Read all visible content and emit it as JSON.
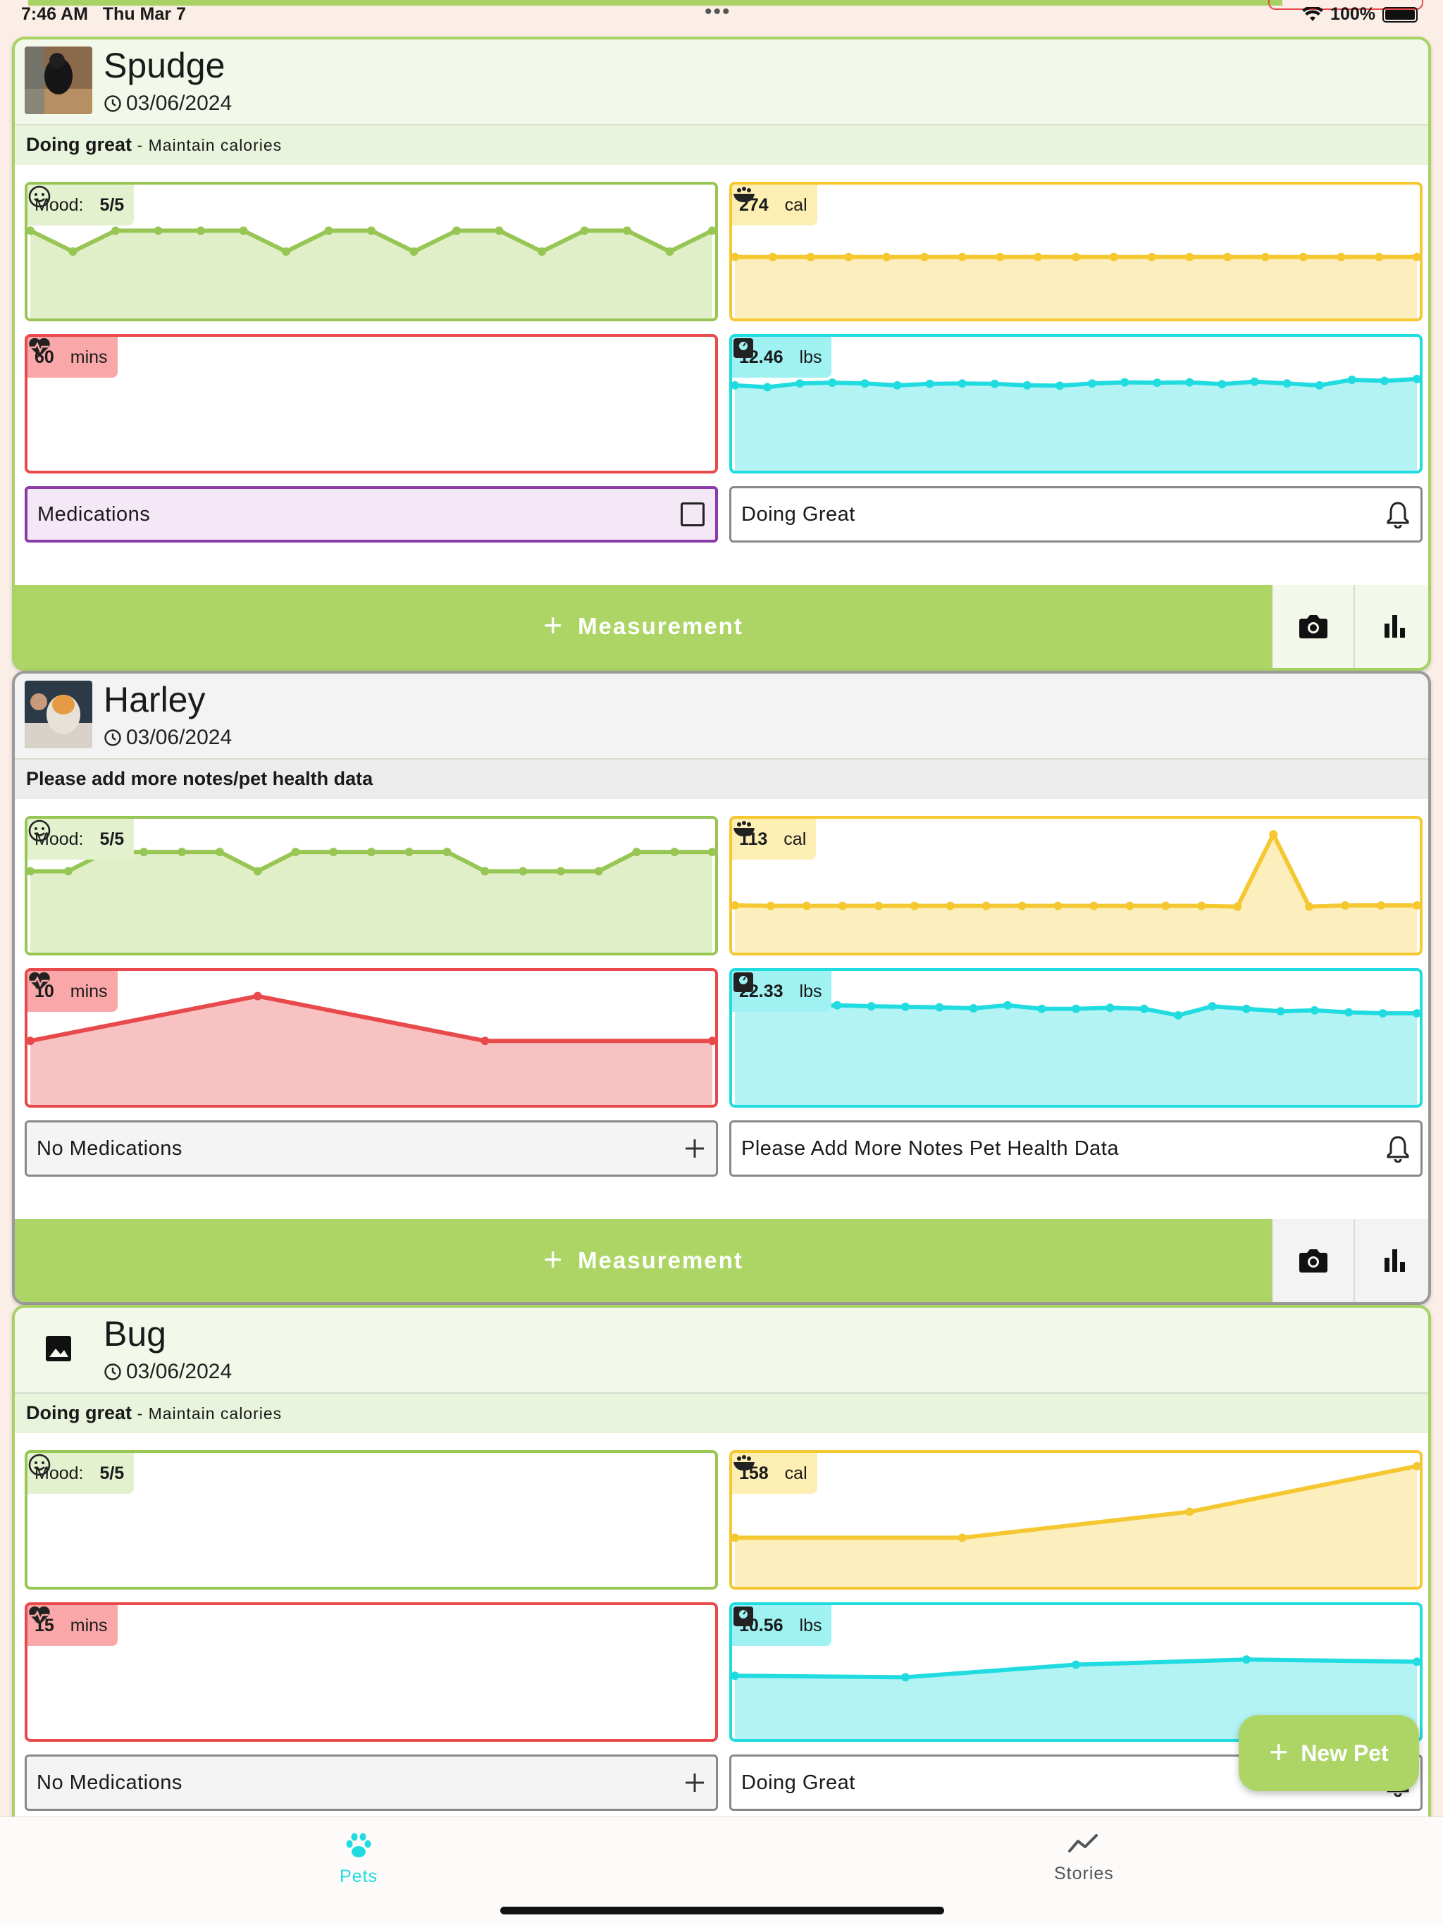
{
  "status_bar": {
    "time": "7:46 AM",
    "date": "Thu Mar 7",
    "battery": "100%"
  },
  "pets": [
    {
      "name": "Spudge",
      "date": "03/06/2024",
      "status": "Doing great",
      "status_sub": "- Maintain calories",
      "mood_label": "Mood:",
      "mood_value": "5/5",
      "calories_value": "274",
      "calories_unit": "cal",
      "activity_value": "60",
      "activity_unit": "mins",
      "weight_value": "12.46",
      "weight_unit": "lbs",
      "medications": "Medications",
      "notes": "Doing Great",
      "chart_data": [
        {
          "type": "area",
          "name": "mood",
          "y": [
            4,
            3,
            4,
            4,
            4,
            4,
            3,
            4,
            4,
            3,
            4,
            4,
            3,
            4,
            4,
            3,
            4
          ]
        },
        {
          "type": "area",
          "name": "calories",
          "y": [
            274,
            274,
            274,
            274,
            274,
            274,
            274,
            274,
            274,
            274,
            274,
            274,
            274,
            274,
            274,
            274,
            274,
            274,
            274
          ]
        },
        {
          "type": "area",
          "name": "activity",
          "y": [
            60
          ]
        },
        {
          "type": "area",
          "name": "weight",
          "y": [
            12.2,
            12.15,
            12.25,
            12.27,
            12.25,
            12.2,
            12.24,
            12.25,
            12.24,
            12.2,
            12.19,
            12.25,
            12.28,
            12.27,
            12.28,
            12.23,
            12.3,
            12.25,
            12.2,
            12.35,
            12.32,
            12.37
          ]
        }
      ]
    },
    {
      "name": "Harley",
      "date": "03/06/2024",
      "status": "Please add more notes/pet health data",
      "status_sub": "",
      "mood_label": "Mood:",
      "mood_value": "5/5",
      "calories_value": "113",
      "calories_unit": "cal",
      "activity_value": "10",
      "activity_unit": "mins",
      "weight_value": "22.33",
      "weight_unit": "lbs",
      "medications": "No Medications",
      "notes": "Please Add More Notes Pet Health Data",
      "chart_data": [
        {
          "type": "area",
          "name": "mood",
          "y": [
            4,
            4,
            5,
            5,
            5,
            5,
            4,
            5,
            5,
            5,
            5,
            5,
            4,
            4,
            4,
            4,
            5,
            5,
            5
          ]
        },
        {
          "type": "area",
          "name": "calories",
          "y": [
            113,
            112,
            112,
            112,
            112,
            112,
            112,
            112,
            112,
            112,
            112,
            112,
            112,
            112,
            110,
            300,
            110,
            113,
            113,
            113
          ]
        },
        {
          "type": "area",
          "name": "activity",
          "y": [
            20,
            35,
            20,
            20
          ]
        },
        {
          "type": "area",
          "name": "weight",
          "y": [
            22.45,
            22.4,
            22.38,
            22.4,
            22.38,
            22.37,
            22.36,
            22.34,
            22.4,
            22.33,
            22.33,
            22.35,
            22.33,
            22.2,
            22.38,
            22.33,
            22.28,
            22.3,
            22.26,
            22.24,
            22.24
          ]
        }
      ]
    },
    {
      "name": "Bug",
      "date": "03/06/2024",
      "status": "Doing great",
      "status_sub": "- Maintain calories",
      "mood_label": "Mood:",
      "mood_value": "5/5",
      "calories_value": "158",
      "calories_unit": "cal",
      "activity_value": "15",
      "activity_unit": "mins",
      "weight_value": "10.56",
      "weight_unit": "lbs",
      "medications": "No Medications",
      "notes": "Doing Great",
      "chart_data": [
        {
          "type": "area",
          "name": "mood",
          "y": [
            5
          ]
        },
        {
          "type": "area",
          "name": "calories",
          "y": [
            100,
            100,
            158,
            260
          ]
        },
        {
          "type": "area",
          "name": "activity",
          "y": [
            15
          ]
        },
        {
          "type": "area",
          "name": "weight",
          "y": [
            10.3,
            10.28,
            10.45,
            10.52,
            10.49
          ]
        }
      ]
    }
  ],
  "measurement_label": "Measurement",
  "fab_label": "New Pet",
  "nav": {
    "pets": "Pets",
    "stories": "Stories"
  },
  "colors": {
    "green": "#acd566",
    "yellow": "#f5c730",
    "red": "#e8494b",
    "cyan": "#20dce0",
    "purple": "#8a3ba7"
  }
}
